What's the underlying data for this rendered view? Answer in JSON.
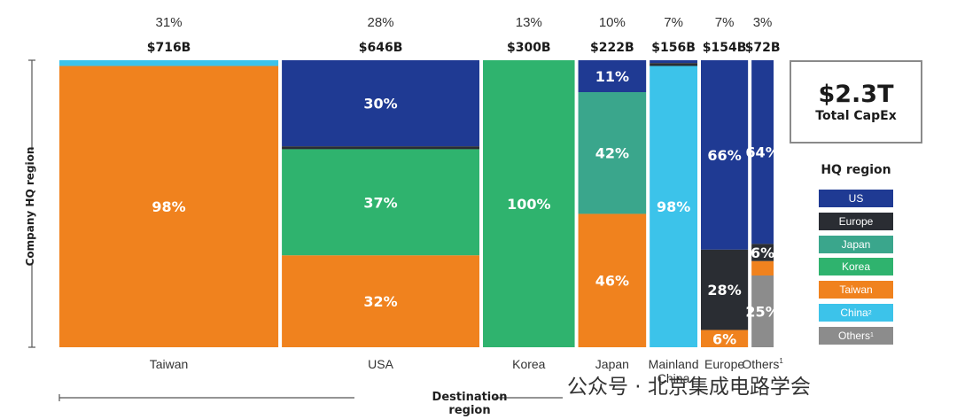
{
  "chart_data": {
    "type": "bar",
    "stacked": true,
    "variable_width": true,
    "xlabel": "Destination region",
    "ylabel": "Company HQ region",
    "columns": [
      {
        "name": "Taiwan",
        "share": "31%",
        "value": "$716B",
        "amount": 716,
        "segments": [
          {
            "region": "China",
            "pct": 2,
            "label": ""
          },
          {
            "region": "Taiwan",
            "pct": 98,
            "label": "98%"
          }
        ]
      },
      {
        "name": "USA",
        "share": "28%",
        "value": "$646B",
        "amount": 646,
        "segments": [
          {
            "region": "US",
            "pct": 30,
            "label": "30%"
          },
          {
            "region": "Europe",
            "pct": 1,
            "label": ""
          },
          {
            "region": "Korea",
            "pct": 37,
            "label": "37%"
          },
          {
            "region": "Taiwan",
            "pct": 32,
            "label": "32%"
          }
        ]
      },
      {
        "name": "Korea",
        "share": "13%",
        "value": "$300B",
        "amount": 300,
        "segments": [
          {
            "region": "Korea",
            "pct": 100,
            "label": "100%"
          }
        ]
      },
      {
        "name": "Japan",
        "share": "10%",
        "value": "$222B",
        "amount": 222,
        "segments": [
          {
            "region": "US",
            "pct": 11,
            "label": "11%"
          },
          {
            "region": "Japan",
            "pct": 42,
            "label": "42%"
          },
          {
            "region": "Taiwan",
            "pct": 46,
            "label": "46%"
          }
        ]
      },
      {
        "name": "Mainland China",
        "share": "7%",
        "value": "$156B",
        "amount": 156,
        "segments": [
          {
            "region": "US",
            "pct": 1,
            "label": ""
          },
          {
            "region": "Europe",
            "pct": 1,
            "label": ""
          },
          {
            "region": "China",
            "pct": 98,
            "label": "98%"
          }
        ]
      },
      {
        "name": "Europe",
        "share": "7%",
        "value": "$154B",
        "amount": 154,
        "segments": [
          {
            "region": "US",
            "pct": 66,
            "label": "66%"
          },
          {
            "region": "Europe",
            "pct": 28,
            "label": "28%"
          },
          {
            "region": "Taiwan",
            "pct": 6,
            "label": "6%"
          }
        ]
      },
      {
        "name": "Others",
        "name_sup": "1",
        "share": "3%",
        "value": "$72B",
        "amount": 72,
        "segments": [
          {
            "region": "US",
            "pct": 64,
            "label": "64%"
          },
          {
            "region": "Europe",
            "pct": 6,
            "label": "6%"
          },
          {
            "region": "Taiwan",
            "pct": 5,
            "label": ""
          },
          {
            "region": "Others",
            "pct": 25,
            "label": "25%"
          }
        ]
      }
    ],
    "legend": {
      "title": "HQ region",
      "position": "right",
      "items": [
        {
          "name": "US",
          "color": "#1f3a93"
        },
        {
          "name": "Europe",
          "color": "#2a2d33"
        },
        {
          "name": "Japan",
          "color": "#3aa68c"
        },
        {
          "name": "Korea",
          "color": "#2fb36e"
        },
        {
          "name": "Taiwan",
          "color": "#f0821e"
        },
        {
          "name": "China",
          "sup": "2",
          "color": "#3cc3ea"
        },
        {
          "name": "Others",
          "sup": "1",
          "color": "#8c8c8c"
        }
      ]
    },
    "total": {
      "value": "$2.3T",
      "label": "Total CapEx"
    }
  },
  "colors": {
    "US": "#1f3a93",
    "Europe": "#2a2d33",
    "Japan": "#3aa68c",
    "Korea": "#2fb36e",
    "Taiwan": "#f0821e",
    "China": "#3cc3ea",
    "Others": "#8c8c8c"
  },
  "watermark": "公众号 · 北京集成电路学会"
}
